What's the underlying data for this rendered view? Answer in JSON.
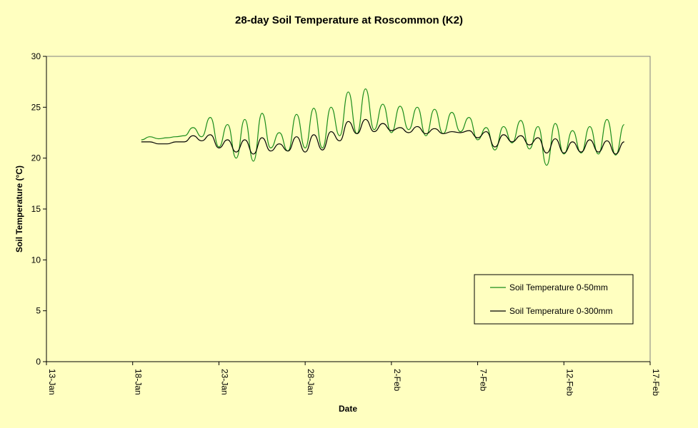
{
  "chart_data": {
    "type": "line",
    "title": "28-day Soil Temperature at Roscommon (K2)",
    "xlabel": "Date",
    "ylabel": "Soil Temperature (°C)",
    "ylim": [
      0,
      30
    ],
    "yticks": [
      0,
      5,
      10,
      15,
      20,
      25,
      30
    ],
    "xlim": [
      "13-Jan",
      "17-Feb"
    ],
    "xticks": [
      "13-Jan",
      "18-Jan",
      "23-Jan",
      "28-Jan",
      "2-Feb",
      "7-Feb",
      "12-Feb",
      "17-Feb"
    ],
    "grid": false,
    "legend_position": "bottom-right",
    "x": [
      "18.5-Jan",
      "19-Jan",
      "19.5-Jan",
      "20-Jan",
      "20.5-Jan",
      "21-Jan",
      "21.5-Jan",
      "22-Jan",
      "22.5-Jan",
      "23-Jan",
      "23.5-Jan",
      "24-Jan",
      "24.5-Jan",
      "25-Jan",
      "25.5-Jan",
      "26-Jan",
      "26.5-Jan",
      "27-Jan",
      "27.5-Jan",
      "28-Jan",
      "28.5-Jan",
      "29-Jan",
      "29.5-Jan",
      "30-Jan",
      "30.5-Jan",
      "31-Jan",
      "31.5-Jan",
      "1-Feb",
      "1.5-Feb",
      "2-Feb",
      "2.5-Feb",
      "3-Feb",
      "3.5-Feb",
      "4-Feb",
      "4.5-Feb",
      "5-Feb",
      "5.5-Feb",
      "6-Feb",
      "6.5-Feb",
      "7-Feb",
      "7.5-Feb",
      "8-Feb",
      "8.5-Feb",
      "9-Feb",
      "9.5-Feb",
      "10-Feb",
      "10.5-Feb",
      "11-Feb",
      "11.5-Feb",
      "12-Feb",
      "12.5-Feb",
      "13-Feb",
      "13.5-Feb",
      "14-Feb",
      "14.5-Feb",
      "15-Feb",
      "15.5-Feb"
    ],
    "series": [
      {
        "name": "Soil Temperature 0-50mm",
        "color": "#1a8c1a",
        "values": [
          21.8,
          22.1,
          21.9,
          22.0,
          22.1,
          22.2,
          23.0,
          22.1,
          24.0,
          21.1,
          23.3,
          20.0,
          23.8,
          19.7,
          24.4,
          21.0,
          22.5,
          20.7,
          24.3,
          21.0,
          24.9,
          21.0,
          25.0,
          22.2,
          26.5,
          22.4,
          26.8,
          22.8,
          25.3,
          22.5,
          25.1,
          22.8,
          25.0,
          22.2,
          24.8,
          22.4,
          24.5,
          22.6,
          24.0,
          21.8,
          23.0,
          20.8,
          23.1,
          21.5,
          23.7,
          20.9,
          23.1,
          19.3,
          23.4,
          20.4,
          22.7,
          20.5,
          23.1,
          20.4,
          23.8,
          20.3,
          23.3
        ]
      },
      {
        "name": "Soil Temperature 0-300mm",
        "color": "#000000",
        "values": [
          21.6,
          21.6,
          21.4,
          21.4,
          21.6,
          21.6,
          22.2,
          21.7,
          22.3,
          21.0,
          21.8,
          20.6,
          21.8,
          20.4,
          22.0,
          20.7,
          21.4,
          20.7,
          22.1,
          20.6,
          22.3,
          20.8,
          22.6,
          21.7,
          23.6,
          22.4,
          23.8,
          22.6,
          23.4,
          22.7,
          23.0,
          22.5,
          23.1,
          22.4,
          22.9,
          22.4,
          22.6,
          22.5,
          22.7,
          22.0,
          22.6,
          21.1,
          22.3,
          21.6,
          22.2,
          21.3,
          22.0,
          20.5,
          21.9,
          20.5,
          21.6,
          20.6,
          21.8,
          20.6,
          21.7,
          20.4,
          21.6
        ]
      }
    ]
  }
}
